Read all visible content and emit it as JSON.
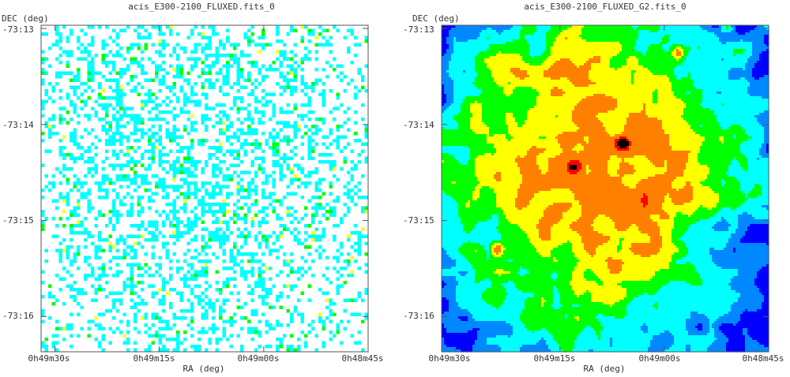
{
  "chart_data": [
    {
      "type": "heatmap",
      "title": "acis_E300-2100_FLUXED.fits_0",
      "xlabel": "RA (deg)",
      "ylabel": "DEC (deg)",
      "x_tick_labels": [
        "0h49m30s",
        "0h49m15s",
        "0h49m00s",
        "0h48m45s"
      ],
      "y_tick_labels": [
        "-73:13",
        "-73:14",
        "-73:15",
        "-73:16"
      ],
      "xlim": [
        "0h49m32s",
        "0h48m45s"
      ],
      "ylim": [
        "-73:16:22",
        "-73:12:58"
      ],
      "grid": false,
      "description_kind": "raw (unsmoothed) X-ray counts map, sparse pixels",
      "colormap": [
        "#ffffff",
        "#00ffff",
        "#00ff00",
        "#ffff00",
        "#ff0000",
        "#000000"
      ],
      "sources": [
        {
          "ra": "0h49m06s",
          "dec": "-73:14:12",
          "intensity": 1.0
        },
        {
          "ra": "0h49m13s",
          "dec": "-73:14:27",
          "intensity": 0.45
        },
        {
          "ra": "0h49m24s",
          "dec": "-73:15:18",
          "intensity": 0.3
        },
        {
          "ra": "0h48m51s",
          "dec": "-73:12:59",
          "intensity": 0.3
        }
      ],
      "diffuse": {
        "ra": "0h49m10s",
        "dec": "-73:14:25",
        "sigma_arcsec": 38
      }
    },
    {
      "type": "heatmap",
      "title": "acis_E300-2100_FLUXED_G2.fits_0",
      "xlabel": "RA (deg)",
      "ylabel": "DEC (deg)",
      "x_tick_labels": [
        "0h49m30s",
        "0h49m15s",
        "0h49m00s",
        "0h48m45s"
      ],
      "y_tick_labels": [
        "-73:13",
        "-73:14",
        "-73:15",
        "-73:16"
      ],
      "xlim": [
        "0h49m32s",
        "0h48m45s"
      ],
      "ylim": [
        "-73:16:22",
        "-73:12:58"
      ],
      "grid": false,
      "description_kind": "Gaussian-smoothed X-ray image",
      "colormap": [
        "#ffffff",
        "#0000ff",
        "#00ffff",
        "#00ff00",
        "#ffff00",
        "#ff8000",
        "#ff0000",
        "#000000"
      ],
      "sources": [
        {
          "ra": "0h49m06s",
          "dec": "-73:14:12",
          "intensity": 1.0
        },
        {
          "ra": "0h49m13s",
          "dec": "-73:14:27",
          "intensity": 0.55
        },
        {
          "ra": "0h49m24s",
          "dec": "-73:15:18",
          "intensity": 0.35
        },
        {
          "ra": "0h48m58s",
          "dec": "-73:13:15",
          "intensity": 0.3
        },
        {
          "ra": "0h48m51s",
          "dec": "-73:12:59",
          "intensity": 0.35
        }
      ],
      "diffuse": {
        "ra": "0h49m10s",
        "dec": "-73:14:25",
        "sigma_arcsec": 38
      }
    }
  ]
}
